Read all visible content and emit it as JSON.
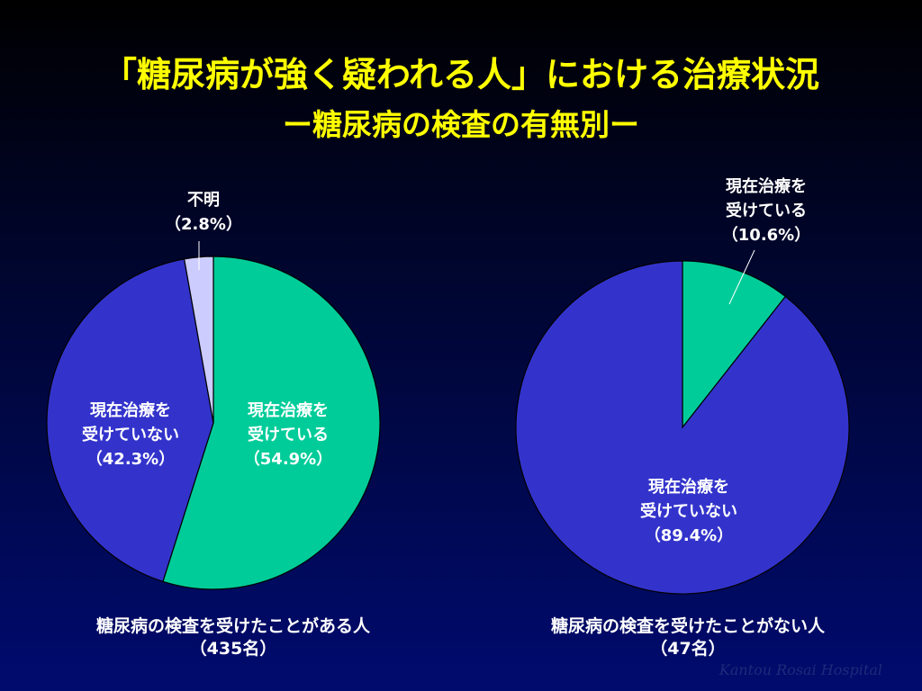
{
  "slide": {
    "title": "「糖尿病が強く疑われる人」における治療状況",
    "subtitle": "ー糖尿病の検査の有無別ー",
    "watermark": "Kantou Rosai Hospital"
  },
  "chart_data": [
    {
      "type": "pie",
      "caption_line1": "糖尿病の検査を受けたことがある人",
      "caption_line2": "（435名）",
      "slices": [
        {
          "name_lines": [
            "現在治療を",
            "受けている"
          ],
          "value_text": "（54.9%）",
          "value": 54.9,
          "color": "#00cc99"
        },
        {
          "name_lines": [
            "現在治療を",
            "受けていない"
          ],
          "value_text": "（42.3%）",
          "value": 42.3,
          "color": "#3333cc"
        },
        {
          "name_lines": [
            "不明"
          ],
          "value_text": "（2.8%）",
          "value": 2.8,
          "color": "#ccccff"
        }
      ]
    },
    {
      "type": "pie",
      "caption_line1": "糖尿病の検査を受けたことがない人",
      "caption_line2": "（47名）",
      "slices": [
        {
          "name_lines": [
            "現在治療を",
            "受けている"
          ],
          "value_text": "（10.6%）",
          "value": 10.6,
          "color": "#00cc99"
        },
        {
          "name_lines": [
            "現在治療を",
            "受けていない"
          ],
          "value_text": "（89.4%）",
          "value": 89.4,
          "color": "#3333cc"
        }
      ]
    }
  ]
}
